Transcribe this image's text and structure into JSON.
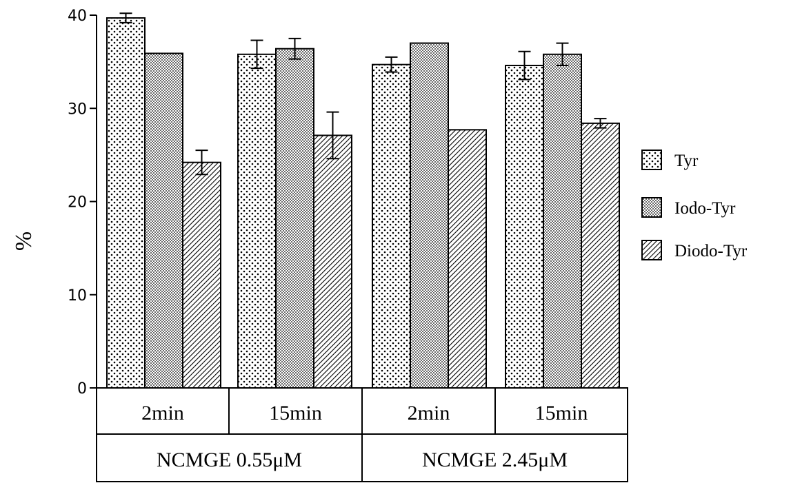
{
  "chart_data": {
    "type": "bar",
    "ylabel": "%",
    "ylim": [
      0,
      40
    ],
    "yticks": [
      "0",
      "10",
      "20",
      "30",
      "40"
    ],
    "categories": [
      "2min",
      "15min",
      "2min",
      "15min"
    ],
    "groups": [
      {
        "label": "NCMGE 0.55μM",
        "categories": [
          "2min",
          "15min"
        ]
      },
      {
        "label": "NCMGE 2.45μM",
        "categories": [
          "2min",
          "15min"
        ]
      }
    ],
    "series": [
      {
        "name": "Tyr",
        "values": [
          39.7,
          35.8,
          34.7,
          34.6
        ],
        "errors": [
          0.5,
          1.5,
          0.8,
          1.5
        ]
      },
      {
        "name": "Iodo-Tyr",
        "values": [
          35.9,
          36.4,
          37.0,
          35.8
        ],
        "errors": [
          0,
          1.1,
          0,
          1.2
        ]
      },
      {
        "name": "Diodo-Tyr",
        "values": [
          24.2,
          27.1,
          27.7,
          28.4
        ],
        "errors": [
          1.3,
          2.5,
          0,
          0.5
        ]
      }
    ],
    "legend_position": "right",
    "grid": false,
    "colors": {
      "Tyr": "#ffffff",
      "Iodo-Tyr": "#ffffff",
      "Diodo-Tyr": "#ffffff",
      "ink": "#000000"
    }
  }
}
